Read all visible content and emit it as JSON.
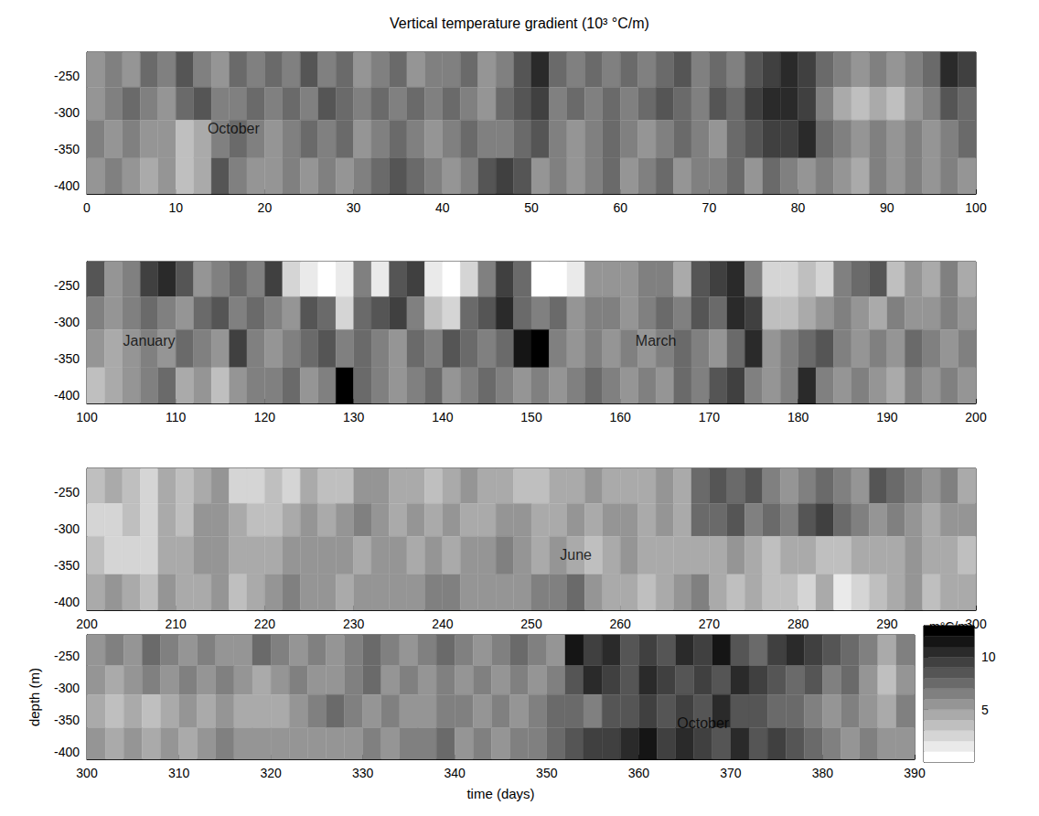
{
  "chart_data": [
    {
      "type": "heatmap",
      "title": "Vertical temperature gradient (10³ °C/m)",
      "xlim": [
        0,
        100
      ],
      "xticks": [
        0,
        10,
        20,
        30,
        40,
        50,
        60,
        70,
        80,
        90,
        100
      ],
      "ylim": [
        -411,
        -217
      ],
      "yticks": [
        -250,
        -300,
        -350,
        -400
      ],
      "x_edges": [
        0,
        2,
        4,
        6,
        8,
        10,
        12,
        14,
        16,
        18,
        20,
        22,
        24,
        26,
        28,
        30,
        32,
        34,
        36,
        38,
        40,
        42,
        44,
        46,
        48,
        50,
        52,
        54,
        56,
        58,
        60,
        62,
        64,
        66,
        68,
        70,
        72,
        74,
        76,
        78,
        80,
        82,
        84,
        86,
        88,
        90,
        92,
        94,
        96,
        98,
        100
      ],
      "y_edges": [
        -217,
        -265,
        -310,
        -362,
        -411
      ],
      "values": [
        [
          5,
          6,
          5,
          7,
          6,
          8,
          6,
          5,
          7,
          6,
          7,
          6,
          8,
          6,
          7,
          5,
          6,
          7,
          5,
          6,
          6,
          7,
          5,
          6,
          8,
          10,
          7,
          6,
          7,
          6,
          7,
          6,
          7,
          8,
          6,
          7,
          6,
          8,
          9,
          10,
          9,
          7,
          6,
          5,
          6,
          5,
          6,
          7,
          10,
          9
        ],
        [
          5,
          6,
          7,
          6,
          5,
          7,
          8,
          6,
          6,
          7,
          6,
          7,
          6,
          8,
          7,
          6,
          7,
          6,
          7,
          6,
          7,
          6,
          5,
          7,
          8,
          9,
          6,
          7,
          6,
          7,
          6,
          7,
          8,
          7,
          6,
          8,
          7,
          9,
          10,
          10,
          9,
          6,
          4,
          3,
          4,
          3,
          5,
          6,
          8,
          7
        ],
        [
          6,
          5,
          6,
          5,
          5,
          3,
          4,
          6,
          7,
          6,
          5,
          6,
          7,
          6,
          7,
          5,
          6,
          7,
          6,
          5,
          6,
          7,
          6,
          6,
          7,
          8,
          6,
          5,
          6,
          7,
          6,
          5,
          6,
          7,
          6,
          5,
          7,
          8,
          9,
          9,
          10,
          7,
          6,
          5,
          6,
          5,
          6,
          5,
          6,
          7
        ],
        [
          5,
          6,
          5,
          4,
          5,
          3,
          4,
          8,
          6,
          5,
          5,
          6,
          5,
          6,
          5,
          6,
          7,
          8,
          7,
          6,
          5,
          6,
          8,
          9,
          8,
          5,
          6,
          5,
          6,
          7,
          5,
          6,
          7,
          5,
          6,
          6,
          7,
          5,
          7,
          6,
          5,
          6,
          5,
          4,
          6,
          5,
          6,
          5,
          6,
          5
        ]
      ],
      "annotations": [
        {
          "text": "October",
          "x": 16.5,
          "y": -322
        }
      ]
    },
    {
      "type": "heatmap",
      "xlim": [
        100,
        200
      ],
      "xticks": [
        100,
        110,
        120,
        130,
        140,
        150,
        160,
        170,
        180,
        190,
        200
      ],
      "ylim": [
        -411,
        -217
      ],
      "yticks": [
        -250,
        -300,
        -350,
        -400
      ],
      "x_edges": [
        100,
        102,
        104,
        106,
        108,
        110,
        112,
        114,
        116,
        118,
        120,
        122,
        124,
        126,
        128,
        130,
        132,
        134,
        136,
        138,
        140,
        142,
        144,
        146,
        148,
        150,
        152,
        154,
        156,
        158,
        160,
        162,
        164,
        166,
        168,
        170,
        172,
        174,
        176,
        178,
        180,
        182,
        184,
        186,
        188,
        190,
        192,
        194,
        196,
        198,
        200
      ],
      "y_edges": [
        -217,
        -265,
        -310,
        -362,
        -411
      ],
      "values": [
        [
          8,
          5,
          6,
          9,
          10,
          8,
          5,
          6,
          7,
          6,
          9,
          2,
          1,
          0,
          1,
          6,
          1,
          8,
          9,
          1,
          0,
          2,
          6,
          9,
          7,
          0,
          0,
          1,
          5,
          5,
          5,
          6,
          6,
          4,
          8,
          9,
          10,
          6,
          2,
          2,
          3,
          2,
          6,
          7,
          8,
          3,
          5,
          4,
          6,
          4
        ],
        [
          6,
          5,
          6,
          7,
          6,
          5,
          7,
          8,
          6,
          7,
          6,
          5,
          8,
          7,
          2,
          7,
          8,
          9,
          6,
          3,
          2,
          7,
          8,
          10,
          7,
          6,
          7,
          5,
          6,
          6,
          5,
          6,
          7,
          6,
          8,
          7,
          10,
          9,
          3,
          3,
          4,
          5,
          6,
          5,
          4,
          6,
          5,
          5,
          6,
          5
        ],
        [
          5,
          4,
          5,
          6,
          5,
          7,
          6,
          5,
          9,
          6,
          5,
          6,
          7,
          8,
          6,
          7,
          6,
          5,
          7,
          6,
          8,
          7,
          6,
          7,
          11,
          12,
          6,
          5,
          6,
          5,
          6,
          5,
          6,
          7,
          6,
          5,
          7,
          10,
          5,
          6,
          7,
          8,
          6,
          5,
          6,
          5,
          7,
          6,
          5,
          6
        ],
        [
          3,
          4,
          5,
          6,
          7,
          4,
          5,
          3,
          5,
          6,
          6,
          7,
          5,
          6,
          12,
          7,
          6,
          5,
          6,
          7,
          5,
          6,
          7,
          6,
          5,
          6,
          5,
          6,
          7,
          6,
          5,
          6,
          5,
          7,
          6,
          8,
          9,
          6,
          5,
          6,
          10,
          6,
          5,
          6,
          5,
          4,
          6,
          5,
          6,
          5
        ]
      ],
      "annotations": [
        {
          "text": "January",
          "x": 107,
          "y": -325
        },
        {
          "text": "March",
          "x": 164,
          "y": -325
        }
      ]
    },
    {
      "type": "heatmap",
      "xlim": [
        200,
        300
      ],
      "xticks": [
        200,
        210,
        220,
        230,
        240,
        250,
        260,
        270,
        280,
        290,
        300
      ],
      "ylim": [
        -411,
        -217
      ],
      "yticks": [
        -250,
        -300,
        -350,
        -400
      ],
      "x_edges": [
        200,
        202,
        204,
        206,
        208,
        210,
        212,
        214,
        216,
        218,
        220,
        222,
        224,
        226,
        228,
        230,
        232,
        234,
        236,
        238,
        240,
        242,
        244,
        246,
        248,
        250,
        252,
        254,
        256,
        258,
        260,
        262,
        264,
        266,
        268,
        270,
        272,
        274,
        276,
        278,
        280,
        282,
        284,
        286,
        288,
        290,
        292,
        294,
        296,
        298,
        300
      ],
      "y_edges": [
        -217,
        -265,
        -310,
        -362,
        -411
      ],
      "values": [
        [
          3,
          4,
          3,
          2,
          4,
          3,
          4,
          5,
          2,
          2,
          3,
          2,
          4,
          3,
          3,
          5,
          5,
          4,
          4,
          3,
          4,
          5,
          4,
          4,
          3,
          3,
          4,
          4,
          5,
          4,
          4,
          4,
          5,
          4,
          7,
          8,
          7,
          8,
          6,
          5,
          6,
          7,
          6,
          5,
          8,
          7,
          6,
          5,
          6,
          4
        ],
        [
          2,
          2,
          3,
          2,
          4,
          3,
          5,
          5,
          4,
          3,
          3,
          4,
          5,
          4,
          5,
          6,
          5,
          4,
          5,
          4,
          5,
          4,
          4,
          5,
          5,
          4,
          4,
          5,
          4,
          5,
          5,
          4,
          5,
          4,
          7,
          7,
          8,
          6,
          7,
          6,
          8,
          9,
          7,
          6,
          5,
          6,
          5,
          4,
          5,
          5
        ],
        [
          3,
          2,
          2,
          2,
          4,
          4,
          5,
          5,
          4,
          4,
          4,
          5,
          5,
          5,
          5,
          4,
          5,
          5,
          4,
          5,
          4,
          5,
          5,
          6,
          5,
          4,
          5,
          4,
          3,
          4,
          5,
          4,
          4,
          4,
          4,
          4,
          5,
          4,
          3,
          4,
          4,
          3,
          3,
          4,
          4,
          4,
          5,
          4,
          4,
          3
        ],
        [
          4,
          5,
          4,
          3,
          5,
          4,
          4,
          5,
          3,
          4,
          5,
          6,
          5,
          5,
          4,
          5,
          5,
          5,
          5,
          6,
          6,
          5,
          5,
          5,
          5,
          6,
          6,
          7,
          5,
          4,
          4,
          3,
          4,
          5,
          6,
          4,
          3,
          4,
          3,
          3,
          2,
          4,
          1,
          2,
          3,
          4,
          5,
          3,
          4,
          4
        ]
      ],
      "annotations": [
        {
          "text": "June",
          "x": 255,
          "y": -335
        }
      ]
    },
    {
      "type": "heatmap",
      "xlim": [
        300,
        390
      ],
      "xticks": [
        300,
        310,
        320,
        330,
        340,
        350,
        360,
        370,
        380,
        390
      ],
      "ylim": [
        -411,
        -217
      ],
      "yticks": [
        -250,
        -300,
        -350,
        -400
      ],
      "xlabel": "time (days)",
      "ylabel": "depth (m)",
      "x_edges": [
        300,
        302,
        304,
        306,
        308,
        310,
        312,
        314,
        316,
        318,
        320,
        322,
        324,
        326,
        328,
        330,
        332,
        334,
        336,
        338,
        340,
        342,
        344,
        346,
        348,
        350,
        352,
        354,
        356,
        358,
        360,
        362,
        364,
        366,
        368,
        370,
        372,
        374,
        376,
        378,
        380,
        382,
        384,
        386,
        388,
        390
      ],
      "y_edges": [
        -217,
        -265,
        -310,
        -362,
        -411
      ],
      "values": [
        [
          5,
          6,
          5,
          7,
          6,
          5,
          6,
          5,
          5,
          7,
          6,
          5,
          6,
          5,
          6,
          7,
          6,
          5,
          6,
          7,
          6,
          5,
          6,
          7,
          6,
          5,
          11,
          9,
          10,
          8,
          9,
          8,
          10,
          9,
          11,
          8,
          7,
          9,
          10,
          9,
          8,
          7,
          6,
          4,
          6
        ],
        [
          5,
          4,
          5,
          6,
          5,
          6,
          5,
          6,
          5,
          4,
          5,
          6,
          5,
          5,
          6,
          7,
          5,
          6,
          5,
          6,
          5,
          6,
          5,
          6,
          5,
          6,
          8,
          10,
          9,
          8,
          10,
          9,
          8,
          9,
          8,
          10,
          9,
          8,
          7,
          8,
          6,
          7,
          5,
          3,
          5
        ],
        [
          4,
          3,
          4,
          3,
          4,
          5,
          4,
          5,
          4,
          4,
          4,
          5,
          6,
          7,
          6,
          5,
          6,
          5,
          5,
          6,
          6,
          5,
          6,
          5,
          6,
          7,
          7,
          6,
          8,
          8,
          9,
          8,
          9,
          8,
          10,
          8,
          8,
          7,
          7,
          6,
          5,
          6,
          5,
          4,
          6
        ],
        [
          5,
          4,
          5,
          4,
          5,
          4,
          5,
          6,
          5,
          5,
          5,
          5,
          5,
          5,
          5,
          6,
          5,
          6,
          6,
          7,
          5,
          6,
          5,
          6,
          6,
          7,
          8,
          9,
          9,
          10,
          11,
          9,
          10,
          9,
          8,
          10,
          8,
          9,
          8,
          7,
          6,
          5,
          6,
          5,
          5
        ]
      ],
      "annotations": [
        {
          "text": "October",
          "x": 367,
          "y": -355
        }
      ],
      "colorbar": {
        "label": "m°C/m",
        "range": [
          0,
          13
        ],
        "ticks": [
          5,
          10
        ],
        "step": 1
      }
    }
  ]
}
